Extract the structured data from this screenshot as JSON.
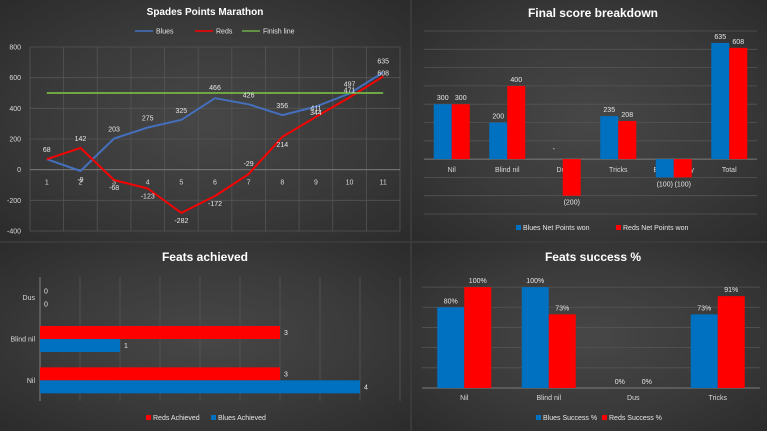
{
  "chart_data": [
    {
      "type": "line",
      "title": "Spades Points Marathon",
      "x": [
        1,
        2,
        3,
        4,
        5,
        6,
        7,
        8,
        9,
        10,
        11
      ],
      "ylim": [
        -400,
        800
      ],
      "yticks": [
        -400,
        -200,
        0,
        200,
        400,
        600,
        800
      ],
      "series": [
        {
          "name": "Blues",
          "color": "#4472c4",
          "values": [
            68,
            -9,
            203,
            275,
            325,
            466,
            426,
            356,
            411,
            497,
            635
          ]
        },
        {
          "name": "Reds",
          "color": "#ff0000",
          "values": [
            68,
            142,
            -68,
            -123,
            -282,
            -172,
            -29,
            214,
            344,
            471,
            608
          ]
        },
        {
          "name": "Finish line",
          "color": "#70ad47",
          "values": [
            500,
            500,
            500,
            500,
            500,
            500,
            500,
            500,
            500,
            500,
            500
          ]
        }
      ],
      "labels": {
        "Blues": [
          "68",
          "-9",
          "203",
          "275",
          "325",
          "466",
          "426",
          "356",
          "411",
          "497",
          "635"
        ],
        "Reds": [
          "",
          "142",
          "-68",
          "-123",
          "-282",
          "-172",
          "-29",
          "214",
          "344",
          "471",
          "608"
        ]
      },
      "legend": "top"
    },
    {
      "type": "bar",
      "title": "Final score breakdown",
      "categories": [
        "Nil",
        "Blind nil",
        "Dus",
        "Tricks",
        "Bags penalty",
        "Total"
      ],
      "series": [
        {
          "name": "Blues Net Points won",
          "color": "#0070c0",
          "values": [
            300,
            200,
            0,
            235,
            -100,
            635
          ]
        },
        {
          "name": "Reds Net Points won",
          "color": "#ff0000",
          "values": [
            300,
            400,
            -200,
            208,
            -100,
            608
          ]
        }
      ],
      "labels": {
        "Blues Net Points won": [
          "300",
          "200",
          "-",
          "235",
          "(100)",
          "635"
        ],
        "Reds Net Points won": [
          "300",
          "400",
          "(200)",
          "208",
          "(100)",
          "608"
        ]
      },
      "ylim": [
        -300,
        700
      ],
      "legend": "bottom"
    },
    {
      "type": "bar",
      "orientation": "horizontal",
      "title": "Feats achieved",
      "categories": [
        "Nil",
        "Blind nil",
        "Dus"
      ],
      "series": [
        {
          "name": "Reds Achieved",
          "color": "#ff0000",
          "values": [
            3,
            3,
            0
          ]
        },
        {
          "name": "Blues Achieved",
          "color": "#0070c0",
          "values": [
            4,
            1,
            0
          ]
        }
      ],
      "xlim": [
        0,
        4.5
      ],
      "legend": "bottom"
    },
    {
      "type": "bar",
      "title": "Feats success %",
      "categories": [
        "Nil",
        "Blind nil",
        "Dus",
        "Tricks"
      ],
      "series": [
        {
          "name": "Blues Success %",
          "color": "#0070c0",
          "values": [
            80,
            100,
            0,
            73
          ]
        },
        {
          "name": "Reds Success %",
          "color": "#ff0000",
          "values": [
            100,
            73,
            0,
            91
          ]
        }
      ],
      "labels": {
        "Blues Success %": [
          "80%",
          "100%",
          "0%",
          "73%"
        ],
        "Reds Success %": [
          "100%",
          "73%",
          "0%",
          "91%"
        ]
      },
      "ylim": [
        0,
        110
      ],
      "legend": "bottom"
    }
  ]
}
